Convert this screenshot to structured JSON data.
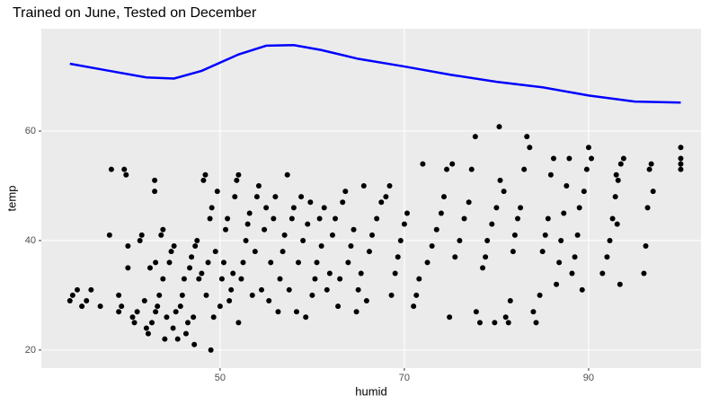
{
  "chart_data": {
    "type": "scatter",
    "title": "Trained on June, Tested on December",
    "x_label": "humid",
    "y_label": "temp",
    "xlim": [
      30.6,
      102.2
    ],
    "ylim": [
      16.7,
      78.7
    ],
    "xticks": [
      50,
      70,
      90
    ],
    "yticks": [
      20,
      40,
      60
    ],
    "grid": true,
    "color": "#000000",
    "x": [
      33.7,
      34,
      34.5,
      35,
      35.5,
      36,
      37,
      38,
      38.2,
      39,
      39,
      39.3,
      39.6,
      39.8,
      40,
      40,
      40.5,
      40.7,
      41,
      41.3,
      41.5,
      41.8,
      42,
      42.2,
      42.4,
      42.6,
      42.9,
      42.9,
      43,
      43,
      43.2,
      43.4,
      43.6,
      43.8,
      43.8,
      44,
      44.2,
      44.5,
      44.7,
      44.9,
      45,
      45.2,
      45.4,
      45.7,
      45.9,
      46.1,
      46.3,
      46.5,
      46.7,
      46.9,
      47.1,
      47.3,
      47.5,
      47.2,
      47.7,
      48,
      48.2,
      48.4,
      48.5,
      48.7,
      48.9,
      49,
      49.1,
      49.3,
      49.5,
      49.7,
      50,
      50.2,
      50.4,
      50.6,
      50.8,
      51,
      51.2,
      51.4,
      51.6,
      51.8,
      52,
      52,
      52.3,
      52.5,
      52.8,
      53,
      53.2,
      53.5,
      53.8,
      54,
      54.2,
      54.5,
      54.8,
      55,
      55.3,
      55.5,
      55.8,
      56,
      56.3,
      56.5,
      56.8,
      57,
      57.3,
      57.5,
      57.8,
      58,
      58.3,
      58.5,
      58.8,
      59,
      59.3,
      59.5,
      59.8,
      60,
      60.3,
      60.5,
      60.8,
      61,
      61.3,
      61.6,
      61.9,
      62.2,
      62.5,
      62.8,
      63,
      63.3,
      63.6,
      63.9,
      64.2,
      64.5,
      64.8,
      65,
      65.3,
      65.6,
      65.9,
      66.2,
      66.5,
      67,
      67.5,
      68,
      68.4,
      68.6,
      69,
      69.3,
      69.6,
      70,
      70.3,
      71,
      71.3,
      71.6,
      72,
      72.5,
      73,
      73.5,
      74,
      74.3,
      74.6,
      74.9,
      75.2,
      75.5,
      76,
      76.5,
      77,
      77.3,
      77.7,
      77.8,
      78.2,
      78.5,
      78.8,
      79,
      79.5,
      79.8,
      80,
      80.4,
      80.8,
      80.3,
      81,
      81.3,
      81.5,
      81.8,
      82,
      82.3,
      82.6,
      83,
      83.3,
      83.6,
      84,
      84.3,
      84.7,
      85,
      85.3,
      85.6,
      85.9,
      86.2,
      86.5,
      86.8,
      87,
      87.3,
      87.6,
      87.9,
      88.2,
      88.5,
      88.8,
      89,
      89.3,
      89.5,
      89.8,
      90,
      90.3,
      91.5,
      92,
      92.3,
      92.6,
      92.9,
      93.2,
      93,
      93.5,
      93.8,
      93.4,
      93.1,
      96,
      96.2,
      96.4,
      96.6,
      96.8,
      97,
      100,
      100,
      100,
      100
    ],
    "y": [
      29,
      30,
      31,
      28,
      29,
      31,
      28,
      41,
      53,
      27,
      30,
      28,
      53,
      52,
      35,
      39,
      26,
      25,
      27,
      40,
      41,
      29,
      24,
      23,
      35,
      25,
      49,
      51,
      36,
      27,
      28,
      30,
      41,
      42,
      33,
      22,
      26,
      36,
      38,
      24,
      39,
      27,
      22,
      28,
      30,
      33,
      23,
      25,
      35,
      37,
      26,
      39,
      40,
      21,
      33,
      34,
      51,
      52,
      30,
      36,
      44,
      20,
      46,
      26,
      38,
      49,
      28,
      33,
      36,
      42,
      44,
      29,
      31,
      34,
      48,
      51,
      52,
      25,
      33,
      36,
      40,
      43,
      45,
      30,
      38,
      48,
      50,
      31,
      42,
      46,
      29,
      36,
      44,
      48,
      27,
      33,
      38,
      41,
      52,
      31,
      44,
      46,
      27,
      36,
      48,
      40,
      26,
      43,
      47,
      30,
      33,
      36,
      44,
      39,
      46,
      31,
      34,
      41,
      44,
      28,
      33,
      47,
      49,
      36,
      39,
      42,
      27,
      31,
      34,
      50,
      29,
      38,
      41,
      44,
      47,
      48,
      50,
      30,
      34,
      37,
      40,
      43,
      45,
      28,
      30,
      33,
      54,
      36,
      39,
      42,
      45,
      48,
      53,
      26,
      54,
      37,
      40,
      44,
      47,
      53,
      59,
      27,
      25,
      35,
      37,
      40,
      43,
      25,
      46,
      51,
      49,
      60.8,
      26,
      25,
      29,
      38,
      41,
      44,
      46,
      53,
      59,
      57,
      27,
      25,
      30,
      38,
      41,
      44,
      52,
      55,
      32,
      36,
      40,
      45,
      50,
      55,
      34,
      37,
      41,
      46,
      31,
      49,
      53,
      57,
      55,
      34,
      37,
      40,
      44,
      48,
      51,
      52,
      54,
      55,
      32,
      43,
      34,
      39,
      46,
      53,
      54,
      49,
      53,
      54,
      55,
      57
    ],
    "smooth": {
      "color": "#0000ff",
      "x": [
        33.7,
        38,
        42,
        45,
        48,
        52,
        55,
        58,
        61,
        65,
        70,
        75,
        80,
        85,
        90,
        95,
        100
      ],
      "y": [
        72.3,
        71,
        69.8,
        69.6,
        71,
        74,
        75.6,
        75.7,
        74.8,
        73.2,
        71.8,
        70.3,
        69,
        68,
        66.5,
        65.4,
        65.2
      ]
    }
  }
}
